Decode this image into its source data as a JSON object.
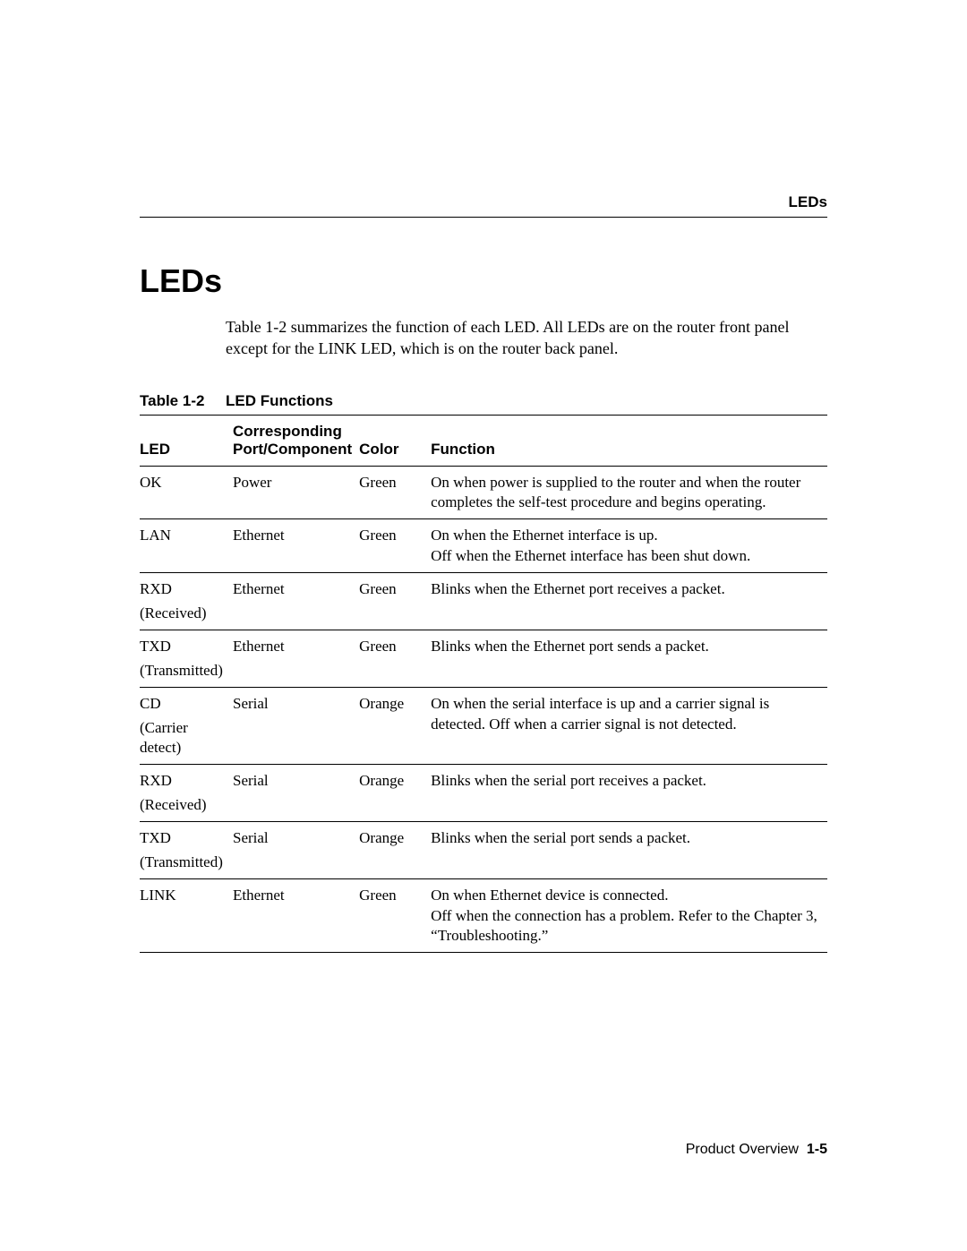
{
  "runningHead": "LEDs",
  "sectionTitle": "LEDs",
  "intro": "Table 1-2 summarizes the function of each LED. All LEDs are on the router front panel except for the LINK LED, which is on the router back panel.",
  "tableCaption": {
    "num": "Table 1-2",
    "title": "LED Functions"
  },
  "columns": {
    "led": "LED",
    "port_line1": "Corresponding",
    "port_line2": "Port/Component",
    "color": "Color",
    "function": "Function"
  },
  "rows": [
    {
      "led": "OK",
      "sub": "",
      "port": "Power",
      "color": "Green",
      "func": "On when power is supplied to the router and when the router completes the self-test procedure and begins operating."
    },
    {
      "led": "LAN",
      "sub": "",
      "port": "Ethernet",
      "color": "Green",
      "func": "On when the Ethernet interface is up.\nOff when the Ethernet interface has been shut down."
    },
    {
      "led": "RXD",
      "sub": "(Received)",
      "port": "Ethernet",
      "color": "Green",
      "func": "Blinks when the Ethernet port receives a packet."
    },
    {
      "led": "TXD",
      "sub": "(Transmitted)",
      "port": "Ethernet",
      "color": "Green",
      "func": "Blinks when the Ethernet port sends a packet."
    },
    {
      "led": "CD",
      "sub": "(Carrier detect)",
      "port": "Serial",
      "color": "Orange",
      "func": "On when the serial interface is up and a carrier signal is detected. Off when a carrier signal is not detected."
    },
    {
      "led": "RXD",
      "sub": "(Received)",
      "port": "Serial",
      "color": "Orange",
      "func": "Blinks when the serial port receives a packet."
    },
    {
      "led": "TXD",
      "sub": "(Transmitted)",
      "port": "Serial",
      "color": "Orange",
      "func": "Blinks when the serial port sends a packet."
    },
    {
      "led": "LINK",
      "sub": "",
      "port": "Ethernet",
      "color": "Green",
      "func": "On when Ethernet device is connected.\nOff when the connection has a problem. Refer to the Chapter 3, “Troubleshooting.”"
    }
  ],
  "footer": {
    "text": "Product Overview",
    "page": "1-5"
  }
}
